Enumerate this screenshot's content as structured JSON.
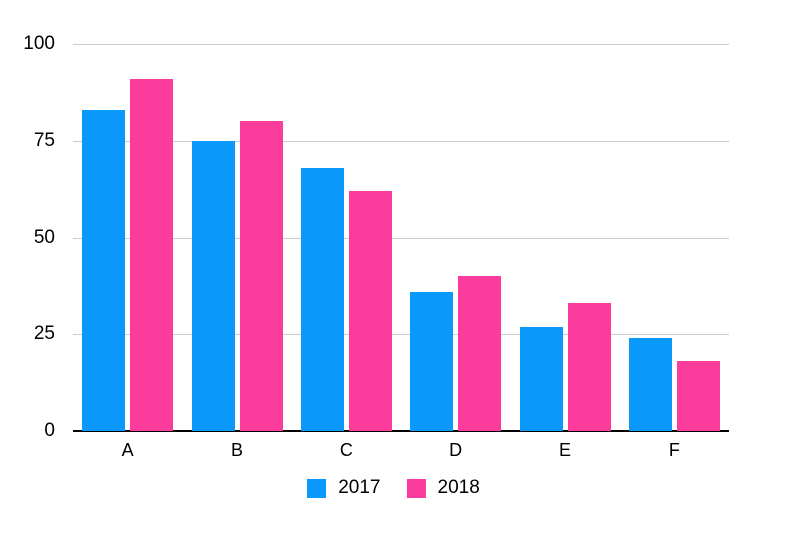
{
  "chart_data": {
    "type": "bar",
    "title": "",
    "xlabel": "",
    "ylabel": "",
    "categories": [
      "A",
      "B",
      "C",
      "D",
      "E",
      "F"
    ],
    "series": [
      {
        "name": "2017",
        "color": "#0A99FA",
        "values": [
          83,
          75,
          68,
          36,
          27,
          24
        ]
      },
      {
        "name": "2018",
        "color": "#FC3C9D",
        "values": [
          91,
          80,
          62,
          40,
          33,
          18
        ]
      }
    ],
    "ylim": [
      0,
      100
    ],
    "yticks": [
      0,
      25,
      50,
      75,
      100
    ],
    "grid": true,
    "gridline_color": "#CCCCCC",
    "axis_color": "#000000",
    "text_color": "#000000",
    "legend_position": "bottom"
  }
}
